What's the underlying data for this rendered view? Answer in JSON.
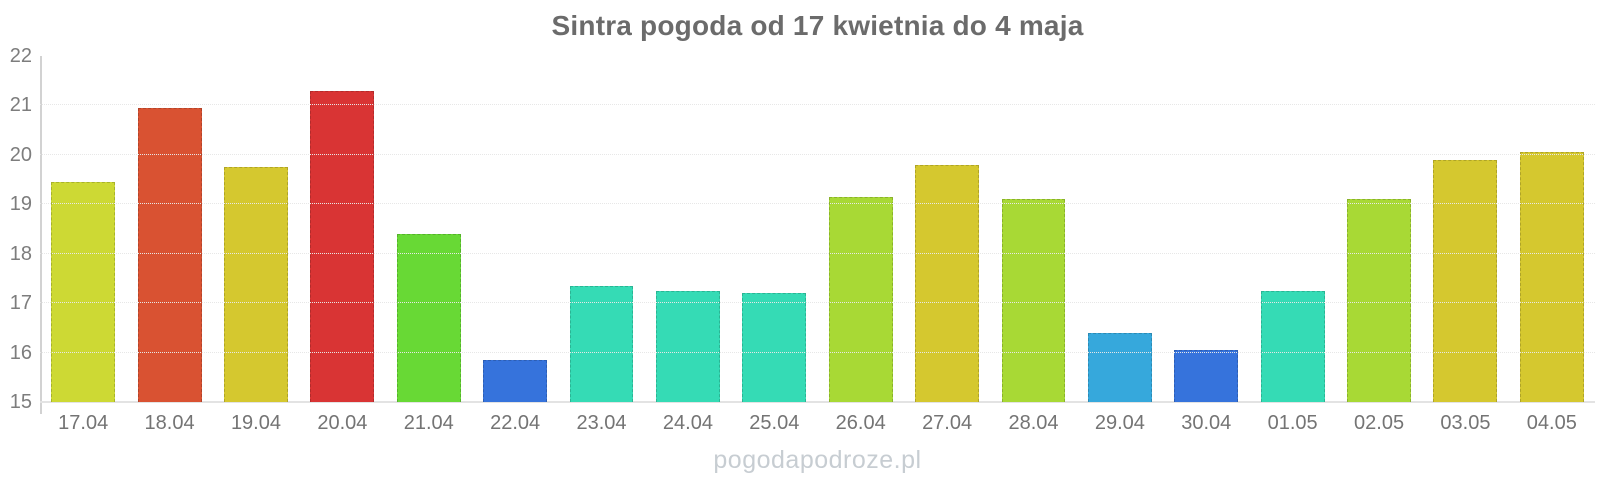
{
  "title": "Sintra pogoda od 17 kwietnia do 4 maja",
  "watermark": "pogodapodroze.pl",
  "colors": {
    "background": "#ffffff",
    "title_text": "#6b6b6b",
    "axis_line": "#d2d2d2",
    "baseline": "#e3e3e3",
    "gridline": "#e7e7e7",
    "tick_label_text": "#7a7a7a",
    "watermark_text": "#c7cdd2"
  },
  "chart_data": {
    "type": "bar",
    "title": "Sintra pogoda od 17 kwietnia do 4 maja",
    "xlabel": "",
    "ylabel": "",
    "ylim": [
      15,
      22
    ],
    "yticks": [
      15,
      16,
      17,
      18,
      19,
      20,
      21,
      22
    ],
    "grid": "horizontal-dotted",
    "legend": "none",
    "categories": [
      "17.04",
      "18.04",
      "19.04",
      "20.04",
      "21.04",
      "22.04",
      "23.04",
      "24.04",
      "25.04",
      "26.04",
      "27.04",
      "28.04",
      "29.04",
      "30.04",
      "01.05",
      "02.05",
      "03.05",
      "04.05"
    ],
    "values": [
      19.45,
      20.95,
      19.75,
      21.3,
      18.4,
      15.85,
      17.35,
      17.25,
      17.2,
      19.15,
      19.8,
      19.1,
      16.4,
      16.05,
      17.25,
      19.1,
      19.9,
      20.05
    ],
    "bar_colors": [
      "#cdd934",
      "#d95232",
      "#d5c82f",
      "#d93434",
      "#68d935",
      "#3673dc",
      "#35dbb5",
      "#35dbb5",
      "#35dbb5",
      "#a8d935",
      "#d5c82f",
      "#a8d935",
      "#36a8dc",
      "#3673dc",
      "#35dbb5",
      "#a8d935",
      "#d5c82f",
      "#d5c82f"
    ]
  }
}
